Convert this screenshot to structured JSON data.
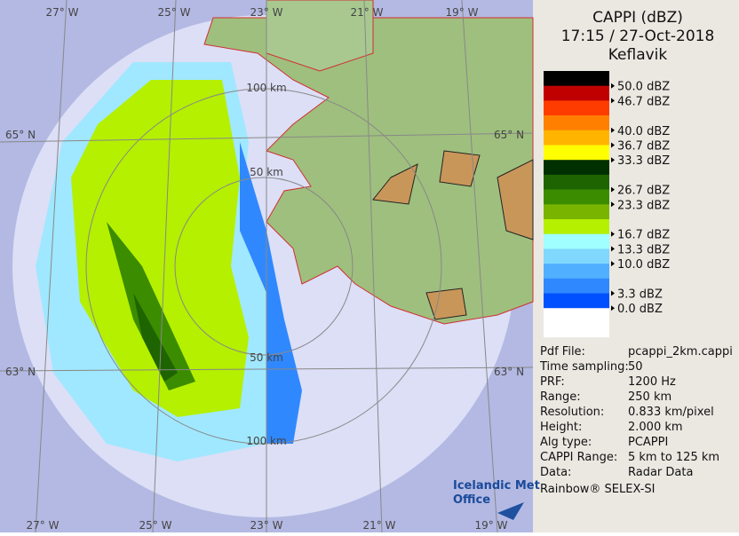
{
  "title": [
    "CAPPI (dBZ)",
    "17:15 / 27-Oct-2018",
    "Keflavik"
  ],
  "legend": {
    "colors": [
      "#000000",
      "#c00000",
      "#ff3c00",
      "#ff8000",
      "#ffb400",
      "#ffff00",
      "#003000",
      "#1e6400",
      "#3c8c00",
      "#78b400",
      "#b4f000",
      "#a0ffff",
      "#80d8ff",
      "#50b0ff",
      "#3088ff",
      "#0050ff"
    ],
    "boundary_labels": [
      "50.0 dBZ",
      "46.7 dBZ",
      null,
      "40.0 dBZ",
      "36.7 dBZ",
      "33.3 dBZ",
      null,
      "26.7 dBZ",
      "23.3 dBZ",
      null,
      "16.7 dBZ",
      "13.3 dBZ",
      "10.0 dBZ",
      null,
      "3.3 dBZ",
      "0.0 dBZ"
    ]
  },
  "info": [
    [
      "Pdf File:",
      "pcappi_2km.cappi"
    ],
    [
      "Time sampling:",
      "50"
    ],
    [
      "PRF:",
      "1200 Hz"
    ],
    [
      "Range:",
      "250 km"
    ],
    [
      "Resolution:",
      "0.833 km/pixel"
    ],
    [
      "Height:",
      "2.000 km"
    ],
    [
      "Alg type:",
      "PCAPPI"
    ],
    [
      "CAPPI Range:",
      "5 km to 125 km"
    ],
    [
      "Data:",
      "Radar Data"
    ]
  ],
  "software": "Rainbow® SELEX-SI",
  "map": {
    "lon_top": [
      "27° W",
      "25° W",
      "23° W",
      "21° W",
      "19° W"
    ],
    "lon_bottom": [
      "27° W",
      "25° W",
      "23° W",
      "21° W",
      "19° W"
    ],
    "lat_left": [
      "65° N",
      "63° N"
    ],
    "lat_right": [
      "65° N",
      "63° N"
    ],
    "range_labels": [
      "100 km",
      "50 km",
      "50 km",
      "100 km"
    ]
  },
  "logo": [
    "Icelandic Met",
    "Office"
  ]
}
